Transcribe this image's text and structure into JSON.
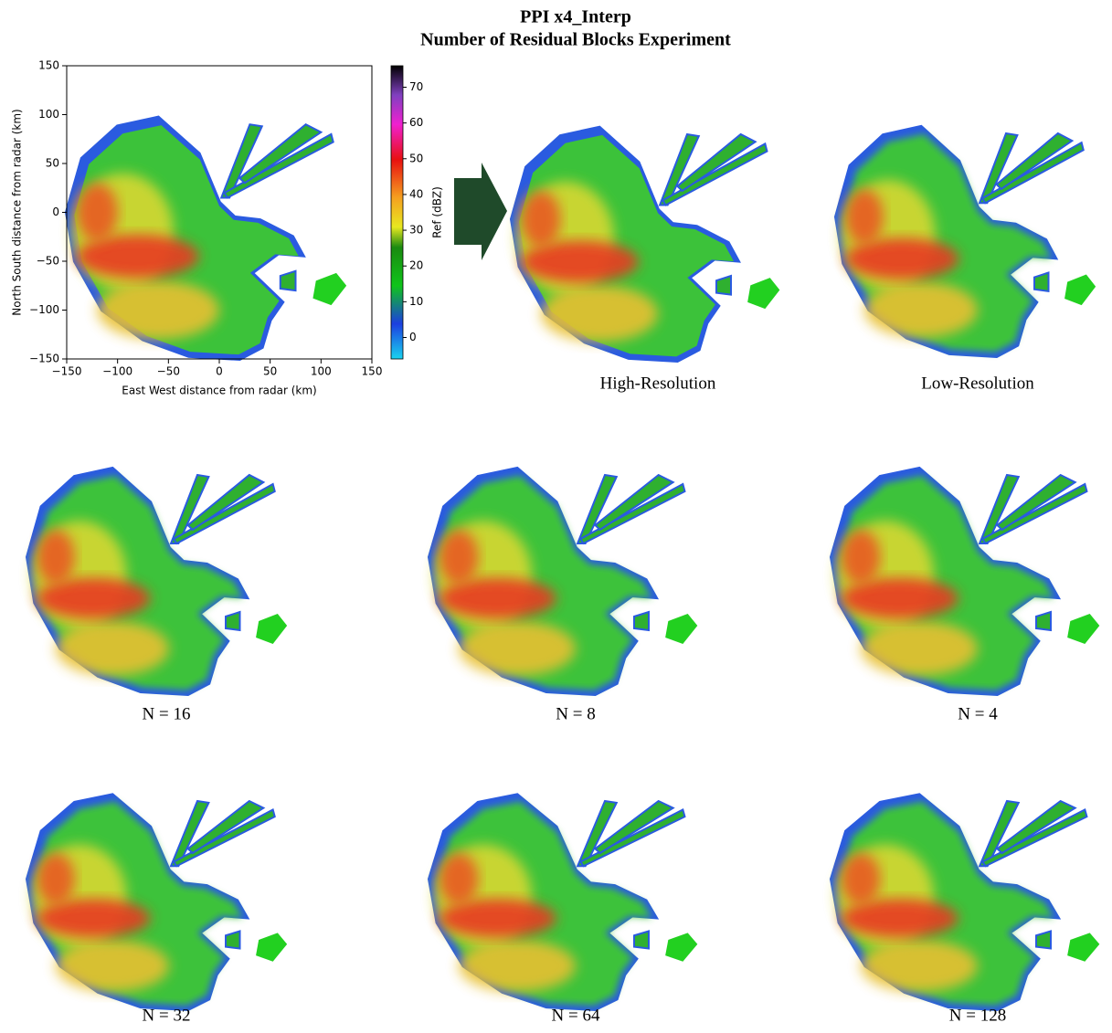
{
  "figure": {
    "title": [
      "PPI x4_Interp",
      "Number of Residual Blocks Experiment"
    ]
  },
  "chart_data": {
    "type": "image",
    "xlabel": "East West distance from radar (km)",
    "ylabel": "North South distance from radar (km)",
    "xlim": [
      -150,
      150
    ],
    "ylim": [
      -150,
      150
    ],
    "xticks": [
      {
        "value": -150,
        "label": "−150"
      },
      {
        "value": -100,
        "label": "−100"
      },
      {
        "value": -50,
        "label": "−50"
      },
      0,
      50,
      100,
      150
    ],
    "yticks": [
      {
        "value": -150,
        "label": "−150"
      },
      {
        "value": -100,
        "label": "−100"
      },
      {
        "value": -50,
        "label": "−50"
      },
      0,
      50,
      100,
      150
    ],
    "colorbar": {
      "label": "Ref (dBZ)",
      "lim": [
        -6,
        76
      ],
      "ticks": [
        0,
        10,
        20,
        30,
        40,
        50,
        60,
        70
      ]
    }
  },
  "panels": [
    {
      "caption": "High-Resolution"
    },
    {
      "caption": "Low-Resolution"
    },
    {
      "caption": "N = 16"
    },
    {
      "caption": "N = 8"
    },
    {
      "caption": "N = 4"
    },
    {
      "caption": "N = 32"
    },
    {
      "caption": "N = 64"
    },
    {
      "caption": "N = 128"
    }
  ]
}
